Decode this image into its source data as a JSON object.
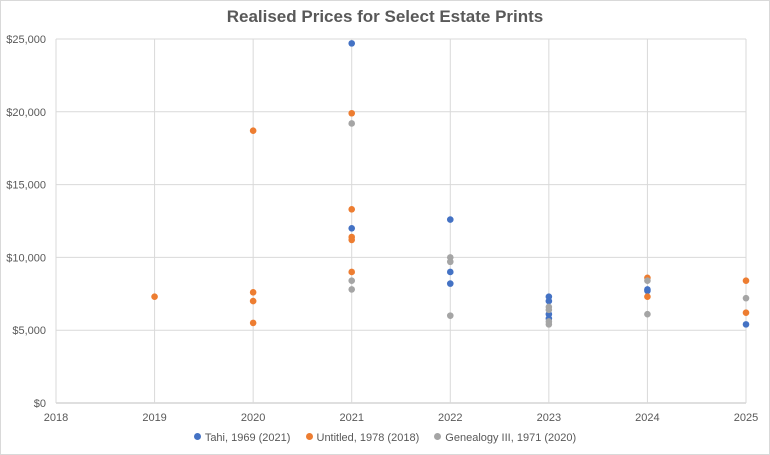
{
  "chart_data": {
    "type": "scatter",
    "title": "Realised Prices for Select Estate Prints",
    "xlabel": "",
    "ylabel": "",
    "xlim": [
      2018,
      2025
    ],
    "ylim": [
      0,
      25000
    ],
    "x_ticks": [
      "2018",
      "2019",
      "2020",
      "2021",
      "2022",
      "2023",
      "2024",
      "2025"
    ],
    "y_ticks": [
      "$0",
      "$5,000",
      "$10,000",
      "$15,000",
      "$20,000",
      "$25,000"
    ],
    "grid": true,
    "legend_position": "bottom",
    "series": [
      {
        "name": "Tahi, 1969 (2021)",
        "color": "#4472c4",
        "points": [
          {
            "x": 2021,
            "y": 24700
          },
          {
            "x": 2021,
            "y": 12000
          },
          {
            "x": 2022,
            "y": 12600
          },
          {
            "x": 2022,
            "y": 9000
          },
          {
            "x": 2022,
            "y": 8200
          },
          {
            "x": 2023,
            "y": 7300
          },
          {
            "x": 2023,
            "y": 7000
          },
          {
            "x": 2023,
            "y": 6100
          },
          {
            "x": 2023,
            "y": 5800
          },
          {
            "x": 2024,
            "y": 7800
          },
          {
            "x": 2024,
            "y": 7700
          },
          {
            "x": 2025,
            "y": 5400
          }
        ]
      },
      {
        "name": "Untitled, 1978 (2018)",
        "color": "#ed7d31",
        "points": [
          {
            "x": 2019,
            "y": 7300
          },
          {
            "x": 2020,
            "y": 18700
          },
          {
            "x": 2020,
            "y": 7600
          },
          {
            "x": 2020,
            "y": 7000
          },
          {
            "x": 2020,
            "y": 5500
          },
          {
            "x": 2021,
            "y": 19900
          },
          {
            "x": 2021,
            "y": 13300
          },
          {
            "x": 2021,
            "y": 11400
          },
          {
            "x": 2021,
            "y": 11200
          },
          {
            "x": 2021,
            "y": 9000
          },
          {
            "x": 2024,
            "y": 8600
          },
          {
            "x": 2024,
            "y": 7300
          },
          {
            "x": 2025,
            "y": 8400
          },
          {
            "x": 2025,
            "y": 6200
          }
        ]
      },
      {
        "name": "Genealogy III, 1971 (2020)",
        "color": "#a5a5a5",
        "points": [
          {
            "x": 2021,
            "y": 19200
          },
          {
            "x": 2021,
            "y": 8400
          },
          {
            "x": 2021,
            "y": 7800
          },
          {
            "x": 2022,
            "y": 10000
          },
          {
            "x": 2022,
            "y": 9700
          },
          {
            "x": 2022,
            "y": 6000
          },
          {
            "x": 2023,
            "y": 6600
          },
          {
            "x": 2023,
            "y": 6400
          },
          {
            "x": 2023,
            "y": 5600
          },
          {
            "x": 2023,
            "y": 5400
          },
          {
            "x": 2024,
            "y": 8400
          },
          {
            "x": 2024,
            "y": 6100
          },
          {
            "x": 2025,
            "y": 7200
          }
        ]
      }
    ]
  }
}
